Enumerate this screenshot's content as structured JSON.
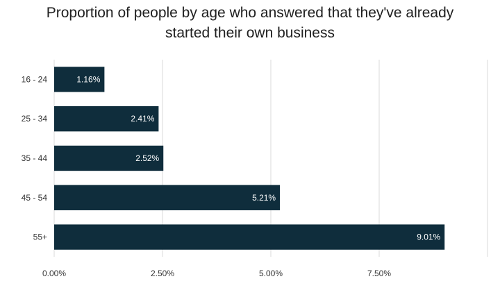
{
  "chart_data": {
    "type": "bar",
    "orientation": "horizontal",
    "title_lines": [
      "Proportion of people by age who answered that they've already",
      "started their own business"
    ],
    "categories": [
      "16 - 24",
      "25 - 34",
      "35 - 44",
      "45 - 54",
      "55+"
    ],
    "values": [
      1.16,
      2.41,
      2.52,
      5.21,
      9.01
    ],
    "data_labels": [
      "1.16%",
      "2.41%",
      "2.52%",
      "5.21%",
      "9.01%"
    ],
    "xlim": [
      0,
      10
    ],
    "x_ticks": [
      0,
      2.5,
      5,
      7.5,
      10
    ],
    "x_tick_labels": [
      "0.00%",
      "2.50%",
      "5.00%",
      "7.50%",
      ""
    ],
    "xlabel": "",
    "ylabel": "",
    "grid": "vertical",
    "legend": "none",
    "bar_color": "#0f2d3c",
    "grid_color": "#d9d9d9"
  }
}
